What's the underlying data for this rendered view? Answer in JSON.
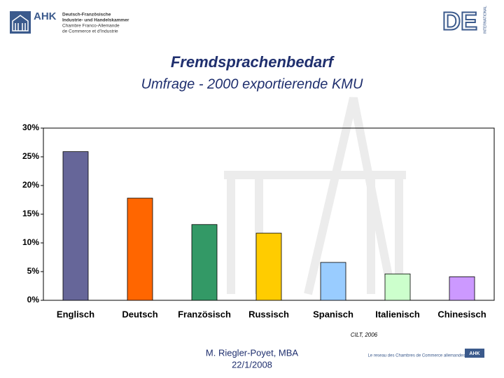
{
  "header": {
    "left_logo": {
      "mark": "AHK",
      "lines": [
        "Deutsch-Französische",
        "Industrie- und Handelskammer",
        "Chambre Franco-Allemande",
        "de Commerce et d'Industrie"
      ]
    },
    "right_logo": {
      "mark": "DE",
      "side": "INTERNATIONAL"
    }
  },
  "chart_data": {
    "type": "bar",
    "title": "Fremdsprachenbedarf",
    "subtitle": "Umfrage - 2000 exportierende KMU",
    "categories": [
      "Englisch",
      "Deutsch",
      "Französisch",
      "Russisch",
      "Spanisch",
      "Italienisch",
      "Chinesisch"
    ],
    "values": [
      25.9,
      17.8,
      13.2,
      11.7,
      6.6,
      4.6,
      4.1
    ],
    "colors": [
      "#666699",
      "#ff6600",
      "#339966",
      "#ffcc00",
      "#99ccff",
      "#ccffcc",
      "#cc99ff"
    ],
    "ylim": [
      0,
      30
    ],
    "yticks": [
      {
        "value": 0,
        "label": "0%"
      },
      {
        "value": 5,
        "label": "5%"
      },
      {
        "value": 10,
        "label": "10%"
      },
      {
        "value": 15,
        "label": "15%"
      },
      {
        "value": 20,
        "label": "20%"
      },
      {
        "value": 25,
        "label": "25%"
      },
      {
        "value": 30,
        "label": "30%"
      }
    ],
    "grid": false,
    "source": "CILT, 2006"
  },
  "footer": {
    "author": "M. Riegler-Poyet, MBA",
    "date": "22/1/2008",
    "network": "Le reseau des Chambres de Commerce allemandes",
    "network_mark": "AHK"
  }
}
